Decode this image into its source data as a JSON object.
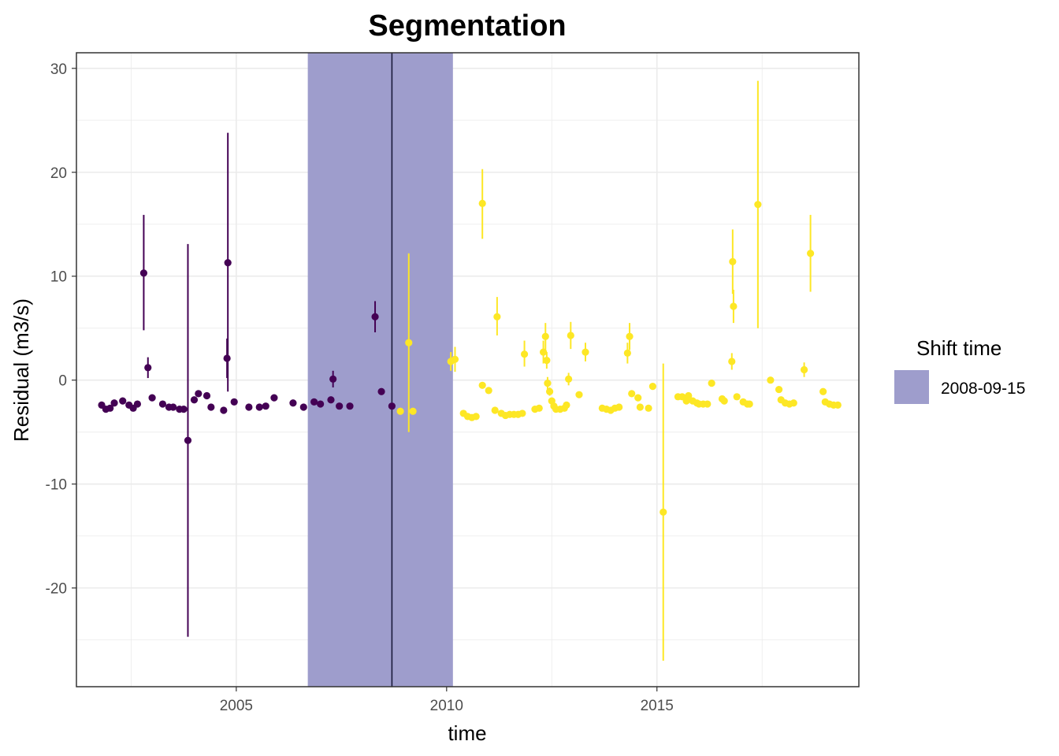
{
  "chart_data": {
    "type": "scatter",
    "title": "Segmentation",
    "xlabel": "time",
    "ylabel": "Residual (m3/s)",
    "xlim": [
      2001.2,
      2019.8
    ],
    "ylim": [
      -29.5,
      31.5
    ],
    "x_ticks": [
      2005,
      2010,
      2015
    ],
    "x_tick_labels": [
      "2005",
      "2010",
      "2015"
    ],
    "y_ticks": [
      -20,
      -10,
      0,
      10,
      20,
      30
    ],
    "y_tick_labels": [
      "-20",
      "-10",
      "0",
      "10",
      "20",
      "30"
    ],
    "grid": true,
    "colors": {
      "before_shift": "#440154",
      "after_shift": "#fde725",
      "shift_band": "#9e9dcc",
      "shift_line": "#1a1a3a",
      "panel_border": "#333333",
      "grid": "#ebebeb"
    },
    "shift": {
      "time": 2008.7,
      "interval": [
        2006.7,
        2010.15
      ],
      "legend_title": "Shift time",
      "legend_label": "2008-09-15",
      "legend_position": "right"
    },
    "series": [
      {
        "points": [
          {
            "x": 2001.8,
            "y": -2.4,
            "lo": -2.4,
            "hi": -2.4
          },
          {
            "x": 2001.9,
            "y": -2.8,
            "lo": -2.8,
            "hi": -2.8
          },
          {
            "x": 2002.0,
            "y": -2.7,
            "lo": -2.7,
            "hi": -2.7
          },
          {
            "x": 2002.1,
            "y": -2.2,
            "lo": -2.2,
            "hi": -2.2
          },
          {
            "x": 2002.3,
            "y": -2.0,
            "lo": -2.0,
            "hi": -2.0
          },
          {
            "x": 2002.45,
            "y": -2.4,
            "lo": -2.4,
            "hi": -2.4
          },
          {
            "x": 2002.55,
            "y": -2.7,
            "lo": -2.7,
            "hi": -2.7
          },
          {
            "x": 2002.65,
            "y": -2.3,
            "lo": -2.3,
            "hi": -2.3
          },
          {
            "x": 2002.8,
            "y": 10.3,
            "lo": 4.8,
            "hi": 15.9
          },
          {
            "x": 2002.9,
            "y": 1.2,
            "lo": 0.2,
            "hi": 2.2
          },
          {
            "x": 2003.0,
            "y": -1.7,
            "lo": -1.7,
            "hi": -1.7
          },
          {
            "x": 2003.25,
            "y": -2.3,
            "lo": -2.3,
            "hi": -2.3
          },
          {
            "x": 2003.4,
            "y": -2.6,
            "lo": -2.6,
            "hi": -2.6
          },
          {
            "x": 2003.5,
            "y": -2.6,
            "lo": -2.6,
            "hi": -2.6
          },
          {
            "x": 2003.65,
            "y": -2.8,
            "lo": -2.8,
            "hi": -2.8
          },
          {
            "x": 2003.75,
            "y": -2.8,
            "lo": -2.8,
            "hi": -2.8
          },
          {
            "x": 2003.85,
            "y": -5.8,
            "lo": -24.7,
            "hi": 13.1
          },
          {
            "x": 2004.0,
            "y": -1.9,
            "lo": -1.9,
            "hi": -1.9
          },
          {
            "x": 2004.1,
            "y": -1.3,
            "lo": -1.3,
            "hi": -1.3
          },
          {
            "x": 2004.3,
            "y": -1.5,
            "lo": -1.5,
            "hi": -1.5
          },
          {
            "x": 2004.4,
            "y": -2.6,
            "lo": -2.6,
            "hi": -2.6
          },
          {
            "x": 2004.7,
            "y": -2.9,
            "lo": -2.9,
            "hi": -2.9
          },
          {
            "x": 2004.78,
            "y": 2.1,
            "lo": 0.2,
            "hi": 4.0
          },
          {
            "x": 2004.8,
            "y": 11.3,
            "lo": -1.1,
            "hi": 23.8
          },
          {
            "x": 2004.95,
            "y": -2.1,
            "lo": -2.1,
            "hi": -2.1
          },
          {
            "x": 2005.3,
            "y": -2.6,
            "lo": -2.6,
            "hi": -2.6
          },
          {
            "x": 2005.55,
            "y": -2.6,
            "lo": -2.6,
            "hi": -2.6
          },
          {
            "x": 2005.7,
            "y": -2.5,
            "lo": -2.5,
            "hi": -2.5
          },
          {
            "x": 2005.9,
            "y": -1.7,
            "lo": -1.7,
            "hi": -1.7
          },
          {
            "x": 2006.35,
            "y": -2.2,
            "lo": -2.2,
            "hi": -2.2
          },
          {
            "x": 2006.6,
            "y": -2.6,
            "lo": -2.6,
            "hi": -2.6
          },
          {
            "x": 2006.85,
            "y": -2.1,
            "lo": -2.1,
            "hi": -2.1
          },
          {
            "x": 2007.0,
            "y": -2.3,
            "lo": -2.3,
            "hi": -2.3
          },
          {
            "x": 2007.25,
            "y": -1.9,
            "lo": -1.9,
            "hi": -1.9
          },
          {
            "x": 2007.3,
            "y": 0.1,
            "lo": -0.7,
            "hi": 0.9
          },
          {
            "x": 2007.45,
            "y": -2.5,
            "lo": -2.5,
            "hi": -2.5
          },
          {
            "x": 2007.7,
            "y": -2.5,
            "lo": -2.5,
            "hi": -2.5
          },
          {
            "x": 2008.3,
            "y": 6.1,
            "lo": 4.6,
            "hi": 7.6
          },
          {
            "x": 2008.45,
            "y": -1.1,
            "lo": -1.1,
            "hi": -1.1
          },
          {
            "x": 2008.7,
            "y": -2.5,
            "lo": -2.5,
            "hi": -2.5
          }
        ]
      },
      {
        "points": [
          {
            "x": 2008.9,
            "y": -3.0,
            "lo": -3.0,
            "hi": -3.0
          },
          {
            "x": 2009.1,
            "y": 3.6,
            "lo": -5.0,
            "hi": 12.2
          },
          {
            "x": 2009.2,
            "y": -3.0,
            "lo": -3.0,
            "hi": -3.0
          },
          {
            "x": 2010.1,
            "y": 1.8,
            "lo": 0.9,
            "hi": 2.7
          },
          {
            "x": 2010.2,
            "y": 2.0,
            "lo": 0.8,
            "hi": 3.2
          },
          {
            "x": 2010.4,
            "y": -3.2,
            "lo": -3.2,
            "hi": -3.2
          },
          {
            "x": 2010.5,
            "y": -3.5,
            "lo": -3.5,
            "hi": -3.5
          },
          {
            "x": 2010.6,
            "y": -3.6,
            "lo": -3.6,
            "hi": -3.6
          },
          {
            "x": 2010.7,
            "y": -3.5,
            "lo": -3.5,
            "hi": -3.5
          },
          {
            "x": 2010.85,
            "y": 17.0,
            "lo": 13.6,
            "hi": 20.3
          },
          {
            "x": 2010.85,
            "y": -0.5,
            "lo": -0.5,
            "hi": -0.5
          },
          {
            "x": 2011.0,
            "y": -1.0,
            "lo": -1.0,
            "hi": -1.0
          },
          {
            "x": 2011.15,
            "y": -2.9,
            "lo": -2.9,
            "hi": -2.9
          },
          {
            "x": 2011.2,
            "y": 6.1,
            "lo": 4.3,
            "hi": 8.0
          },
          {
            "x": 2011.3,
            "y": -3.2,
            "lo": -3.2,
            "hi": -3.2
          },
          {
            "x": 2011.4,
            "y": -3.4,
            "lo": -3.4,
            "hi": -3.4
          },
          {
            "x": 2011.5,
            "y": -3.3,
            "lo": -3.3,
            "hi": -3.3
          },
          {
            "x": 2011.6,
            "y": -3.3,
            "lo": -3.3,
            "hi": -3.3
          },
          {
            "x": 2011.7,
            "y": -3.3,
            "lo": -3.3,
            "hi": -3.3
          },
          {
            "x": 2011.8,
            "y": -3.2,
            "lo": -3.2,
            "hi": -3.2
          },
          {
            "x": 2011.85,
            "y": 2.5,
            "lo": 1.3,
            "hi": 3.8
          },
          {
            "x": 2012.1,
            "y": -2.8,
            "lo": -2.8,
            "hi": -2.8
          },
          {
            "x": 2012.2,
            "y": -2.7,
            "lo": -2.7,
            "hi": -2.7
          },
          {
            "x": 2012.3,
            "y": 2.7,
            "lo": 1.6,
            "hi": 3.8
          },
          {
            "x": 2012.35,
            "y": 4.2,
            "lo": 2.9,
            "hi": 5.5
          },
          {
            "x": 2012.38,
            "y": 1.9,
            "lo": 1.1,
            "hi": 2.7
          },
          {
            "x": 2012.4,
            "y": -0.3,
            "lo": -0.9,
            "hi": 0.3
          },
          {
            "x": 2012.45,
            "y": -1.1,
            "lo": -1.5,
            "hi": -0.7
          },
          {
            "x": 2012.5,
            "y": -2.0,
            "lo": -2.0,
            "hi": -2.0
          },
          {
            "x": 2012.55,
            "y": -2.5,
            "lo": -2.5,
            "hi": -2.5
          },
          {
            "x": 2012.6,
            "y": -2.8,
            "lo": -2.8,
            "hi": -2.8
          },
          {
            "x": 2012.7,
            "y": -2.8,
            "lo": -2.8,
            "hi": -2.8
          },
          {
            "x": 2012.8,
            "y": -2.7,
            "lo": -2.7,
            "hi": -2.7
          },
          {
            "x": 2012.85,
            "y": -2.4,
            "lo": -2.4,
            "hi": -2.4
          },
          {
            "x": 2012.9,
            "y": 0.1,
            "lo": -0.5,
            "hi": 0.7
          },
          {
            "x": 2012.95,
            "y": 4.3,
            "lo": 3.0,
            "hi": 5.6
          },
          {
            "x": 2013.15,
            "y": -1.4,
            "lo": -1.4,
            "hi": -1.4
          },
          {
            "x": 2013.3,
            "y": 2.7,
            "lo": 1.8,
            "hi": 3.6
          },
          {
            "x": 2013.7,
            "y": -2.7,
            "lo": -2.7,
            "hi": -2.7
          },
          {
            "x": 2013.8,
            "y": -2.8,
            "lo": -2.8,
            "hi": -2.8
          },
          {
            "x": 2013.9,
            "y": -2.9,
            "lo": -2.9,
            "hi": -2.9
          },
          {
            "x": 2014.0,
            "y": -2.7,
            "lo": -2.7,
            "hi": -2.7
          },
          {
            "x": 2014.1,
            "y": -2.6,
            "lo": -2.6,
            "hi": -2.6
          },
          {
            "x": 2014.3,
            "y": 2.6,
            "lo": 1.6,
            "hi": 3.6
          },
          {
            "x": 2014.35,
            "y": 4.2,
            "lo": 2.9,
            "hi": 5.5
          },
          {
            "x": 2014.4,
            "y": -1.3,
            "lo": -1.3,
            "hi": -1.3
          },
          {
            "x": 2014.55,
            "y": -1.7,
            "lo": -1.7,
            "hi": -1.7
          },
          {
            "x": 2014.6,
            "y": -2.6,
            "lo": -2.6,
            "hi": -2.6
          },
          {
            "x": 2014.8,
            "y": -2.7,
            "lo": -2.7,
            "hi": -2.7
          },
          {
            "x": 2014.9,
            "y": -0.6,
            "lo": -0.6,
            "hi": -0.6
          },
          {
            "x": 2015.15,
            "y": -12.7,
            "lo": -27.0,
            "hi": 1.6
          },
          {
            "x": 2015.5,
            "y": -1.6,
            "lo": -1.6,
            "hi": -1.6
          },
          {
            "x": 2015.6,
            "y": -1.6,
            "lo": -1.6,
            "hi": -1.6
          },
          {
            "x": 2015.7,
            "y": -2.0,
            "lo": -2.0,
            "hi": -2.0
          },
          {
            "x": 2015.75,
            "y": -1.5,
            "lo": -1.5,
            "hi": -1.5
          },
          {
            "x": 2015.85,
            "y": -2.0,
            "lo": -2.0,
            "hi": -2.0
          },
          {
            "x": 2015.95,
            "y": -2.2,
            "lo": -2.2,
            "hi": -2.2
          },
          {
            "x": 2016.0,
            "y": -2.3,
            "lo": -2.3,
            "hi": -2.3
          },
          {
            "x": 2016.1,
            "y": -2.3,
            "lo": -2.3,
            "hi": -2.3
          },
          {
            "x": 2016.2,
            "y": -2.3,
            "lo": -2.3,
            "hi": -2.3
          },
          {
            "x": 2016.3,
            "y": -0.3,
            "lo": -0.3,
            "hi": -0.3
          },
          {
            "x": 2016.55,
            "y": -1.8,
            "lo": -1.8,
            "hi": -1.8
          },
          {
            "x": 2016.6,
            "y": -2.0,
            "lo": -2.0,
            "hi": -2.0
          },
          {
            "x": 2016.8,
            "y": 11.4,
            "lo": 8.3,
            "hi": 14.5
          },
          {
            "x": 2016.82,
            "y": 7.1,
            "lo": 5.5,
            "hi": 8.7
          },
          {
            "x": 2016.78,
            "y": 1.8,
            "lo": 1.0,
            "hi": 2.6
          },
          {
            "x": 2016.9,
            "y": -1.6,
            "lo": -1.6,
            "hi": -1.6
          },
          {
            "x": 2017.05,
            "y": -2.1,
            "lo": -2.1,
            "hi": -2.1
          },
          {
            "x": 2017.15,
            "y": -2.3,
            "lo": -2.3,
            "hi": -2.3
          },
          {
            "x": 2017.2,
            "y": -2.3,
            "lo": -2.3,
            "hi": -2.3
          },
          {
            "x": 2017.4,
            "y": 16.9,
            "lo": 5.0,
            "hi": 28.8
          },
          {
            "x": 2017.7,
            "y": 0.0,
            "lo": 0.0,
            "hi": 0.0
          },
          {
            "x": 2017.9,
            "y": -0.9,
            "lo": -0.9,
            "hi": -0.9
          },
          {
            "x": 2017.95,
            "y": -1.9,
            "lo": -1.9,
            "hi": -1.9
          },
          {
            "x": 2018.05,
            "y": -2.2,
            "lo": -2.2,
            "hi": -2.2
          },
          {
            "x": 2018.15,
            "y": -2.3,
            "lo": -2.3,
            "hi": -2.3
          },
          {
            "x": 2018.25,
            "y": -2.2,
            "lo": -2.2,
            "hi": -2.2
          },
          {
            "x": 2018.5,
            "y": 1.0,
            "lo": 0.3,
            "hi": 1.7
          },
          {
            "x": 2018.65,
            "y": 12.2,
            "lo": 8.5,
            "hi": 15.9
          },
          {
            "x": 2018.95,
            "y": -1.1,
            "lo": -1.1,
            "hi": -1.1
          },
          {
            "x": 2019.0,
            "y": -2.1,
            "lo": -2.1,
            "hi": -2.1
          },
          {
            "x": 2019.1,
            "y": -2.3,
            "lo": -2.3,
            "hi": -2.3
          },
          {
            "x": 2019.2,
            "y": -2.4,
            "lo": -2.4,
            "hi": -2.4
          },
          {
            "x": 2019.3,
            "y": -2.4,
            "lo": -2.4,
            "hi": -2.4
          }
        ]
      }
    ]
  }
}
